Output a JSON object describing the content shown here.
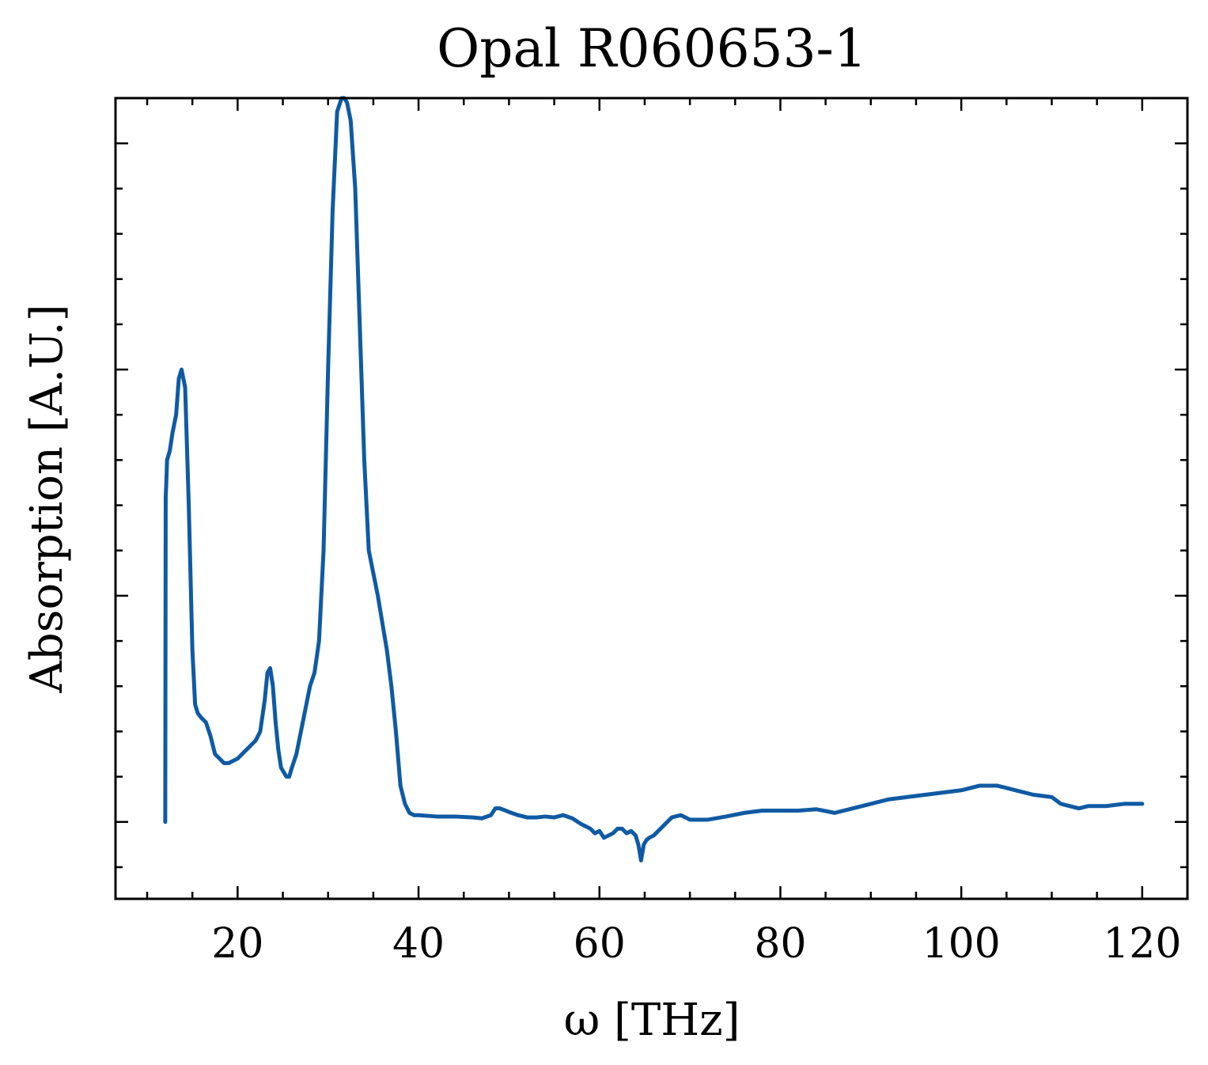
{
  "chart_data": {
    "type": "line",
    "title": "Opal R060653-1",
    "xlabel": "ω [THz]",
    "ylabel": "Absorption [A.U.]",
    "xlim": [
      6.5,
      125
    ],
    "ylim": [
      -0.17,
      1.6
    ],
    "x_ticks": [
      20,
      40,
      60,
      80,
      100,
      120
    ],
    "x_tick_labels": [
      "20",
      "40",
      "60",
      "80",
      "100",
      "120"
    ],
    "y_ticks": [
      0,
      0.5,
      1.0,
      1.5
    ],
    "y_tick_labels": [],
    "grid": false,
    "legend": "none",
    "colors": {
      "series": "#0f5aa3"
    },
    "series": [
      {
        "x": [
          12.0,
          12.05,
          12.1,
          12.2,
          12.5,
          12.8,
          13.0,
          13.2,
          13.5,
          13.8,
          14.2,
          14.6,
          15.0,
          15.3,
          15.6,
          16.0,
          16.5,
          17.0,
          17.5,
          18.0,
          18.5,
          19.0,
          19.5,
          20.0,
          20.5,
          21.0,
          21.5,
          22.0,
          22.5,
          23.0,
          23.3,
          23.6,
          23.9,
          24.2,
          24.5,
          24.8,
          25.1,
          25.4,
          25.7,
          26.0,
          26.5,
          27.0,
          27.5,
          28.0,
          28.5,
          29.0,
          29.5,
          30.0,
          30.5,
          31.0,
          31.5,
          31.8,
          32.1,
          32.5,
          33.0,
          33.5,
          34.0,
          34.5,
          35.0,
          35.5,
          36.0,
          36.5,
          37.0,
          37.5,
          38.0,
          38.5,
          39.0,
          39.5,
          40.0,
          42.0,
          44.0,
          46.0,
          47.0,
          48.0,
          48.5,
          49.0,
          50.0,
          51.0,
          52.0,
          53.0,
          54.0,
          55.0,
          56.0,
          57.0,
          58.0,
          59.0,
          59.5,
          60.0,
          60.5,
          61.0,
          61.5,
          62.0,
          62.5,
          63.0,
          63.5,
          64.0,
          64.3,
          64.6,
          64.9,
          65.2,
          65.5,
          66.0,
          67.0,
          68.0,
          69.0,
          70.0,
          72.0,
          74.0,
          76.0,
          78.0,
          80.0,
          82.0,
          84.0,
          86.0,
          88.0,
          90.0,
          92.0,
          94.0,
          96.0,
          98.0,
          100.0,
          102.0,
          104.0,
          106.0,
          108.0,
          110.0,
          111.0,
          112.0,
          113.0,
          114.0,
          116.0,
          118.0,
          119.0,
          120.0
        ],
        "y": [
          0.0,
          0.72,
          0.74,
          0.8,
          0.82,
          0.86,
          0.88,
          0.9,
          0.98,
          1.0,
          0.96,
          0.7,
          0.38,
          0.26,
          0.24,
          0.23,
          0.22,
          0.19,
          0.15,
          0.14,
          0.13,
          0.13,
          0.135,
          0.14,
          0.15,
          0.16,
          0.17,
          0.18,
          0.2,
          0.27,
          0.33,
          0.34,
          0.3,
          0.22,
          0.16,
          0.12,
          0.11,
          0.1,
          0.1,
          0.12,
          0.15,
          0.2,
          0.25,
          0.3,
          0.33,
          0.4,
          0.6,
          1.0,
          1.35,
          1.57,
          1.6,
          1.6,
          1.59,
          1.55,
          1.4,
          1.1,
          0.8,
          0.6,
          0.55,
          0.5,
          0.44,
          0.38,
          0.3,
          0.2,
          0.08,
          0.04,
          0.02,
          0.015,
          0.015,
          0.012,
          0.012,
          0.01,
          0.008,
          0.015,
          0.03,
          0.03,
          0.022,
          0.015,
          0.01,
          0.01,
          0.012,
          0.01,
          0.015,
          0.008,
          -0.005,
          -0.015,
          -0.025,
          -0.02,
          -0.035,
          -0.03,
          -0.025,
          -0.015,
          -0.015,
          -0.025,
          -0.02,
          -0.03,
          -0.05,
          -0.085,
          -0.05,
          -0.04,
          -0.035,
          -0.03,
          -0.01,
          0.01,
          0.015,
          0.005,
          0.005,
          0.012,
          0.02,
          0.025,
          0.025,
          0.025,
          0.028,
          0.02,
          0.03,
          0.04,
          0.05,
          0.055,
          0.06,
          0.065,
          0.07,
          0.08,
          0.08,
          0.07,
          0.06,
          0.055,
          0.04,
          0.035,
          0.03,
          0.035,
          0.035,
          0.04,
          0.04,
          0.04
        ]
      }
    ]
  }
}
